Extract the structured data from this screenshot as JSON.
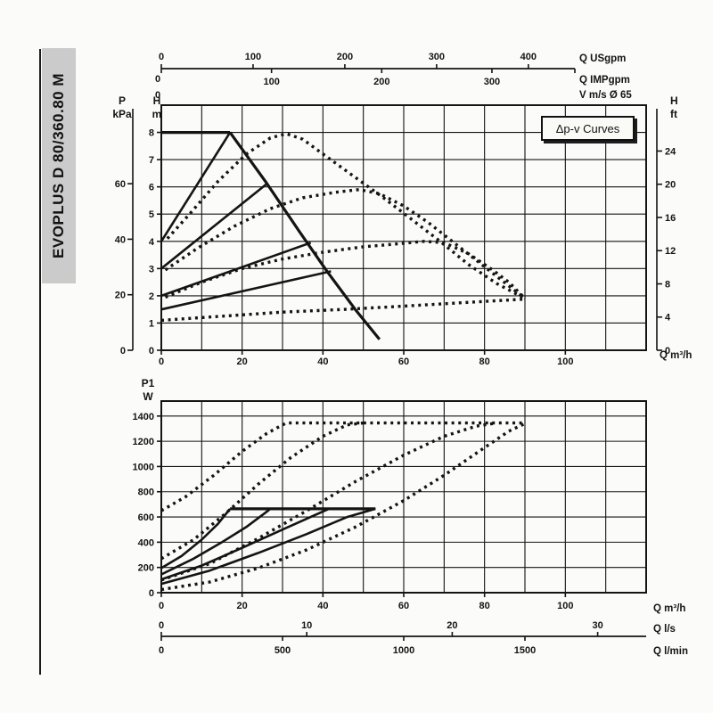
{
  "page": {
    "sidebar_model": "EVOPLUS D 80/360.80 M",
    "badge_label": "Δp-v Curves"
  },
  "chart_data": [
    {
      "type": "line",
      "title": "Δp-v Curves",
      "xlabel": "Q m³/h",
      "x_range": [
        0,
        120
      ],
      "x_grid_step": 10,
      "x_ticks_m3h": [
        0,
        20,
        40,
        60,
        80,
        100
      ],
      "y_left_m": {
        "header": [
          "H",
          "m"
        ],
        "ticks": [
          0,
          1,
          2,
          3,
          4,
          5,
          6,
          7,
          8
        ],
        "range": [
          0,
          9
        ]
      },
      "y_left_kpa": {
        "header": [
          "P",
          "kPa"
        ],
        "ticks": [
          0,
          20,
          40,
          60
        ],
        "kpa_per_m": 9.81
      },
      "y_right_ft": {
        "header": [
          "H",
          "ft"
        ],
        "ticks": [
          0,
          4,
          8,
          12,
          16,
          20,
          24
        ],
        "m_per_ft": 0.3048
      },
      "x_top_usgpm": {
        "label": "Q USgpm",
        "ticks": [
          0,
          100,
          200,
          300,
          400
        ],
        "m3h_per_unit": 0.22712
      },
      "x_top_impgpm": {
        "label": "Q IMPgpm",
        "ticks": [
          0,
          100,
          200,
          300
        ],
        "m3h_per_unit": 0.27277
      },
      "x_top_v": {
        "label": "V m/s Ø 65",
        "zero_label": "0"
      },
      "series_solid": [
        {
          "name": "max-head-limit",
          "width": 3.2,
          "points": [
            [
              0,
              8
            ],
            [
              17,
              8
            ]
          ]
        },
        {
          "name": "max-speed-curve",
          "width": 3.2,
          "points": [
            [
              17,
              8
            ],
            [
              26,
              6.15
            ],
            [
              34,
              4.4
            ],
            [
              41,
              2.9
            ],
            [
              48,
              1.5
            ],
            [
              54,
              0.4
            ]
          ]
        },
        {
          "name": "setpoint-line-8m",
          "width": 2.6,
          "points": [
            [
              0,
              4
            ],
            [
              17,
              8
            ]
          ]
        },
        {
          "name": "setpoint-line-6m",
          "width": 2.6,
          "points": [
            [
              0,
              3
            ],
            [
              26,
              6.1
            ]
          ]
        },
        {
          "name": "setpoint-line-4m",
          "width": 2.6,
          "points": [
            [
              0,
              2
            ],
            [
              37,
              3.95
            ]
          ]
        },
        {
          "name": "setpoint-line-3m",
          "width": 2.6,
          "points": [
            [
              0,
              1.5
            ],
            [
              42,
              2.9
            ]
          ]
        }
      ],
      "series_dotted": [
        {
          "name": "control-curve-1",
          "points": [
            [
              1.5,
              4.1
            ],
            [
              7,
              5.0
            ],
            [
              14,
              6.2
            ],
            [
              21,
              7.2
            ],
            [
              27,
              7.8
            ],
            [
              31,
              7.95
            ],
            [
              35,
              7.75
            ],
            [
              41,
              7.1
            ],
            [
              48,
              6.35
            ],
            [
              55,
              5.6
            ],
            [
              62,
              4.8
            ],
            [
              69,
              4.0
            ],
            [
              76,
              3.15
            ],
            [
              83,
              2.45
            ],
            [
              90,
              1.9
            ]
          ]
        },
        {
          "name": "control-curve-2",
          "points": [
            [
              1,
              2.95
            ],
            [
              9,
              3.75
            ],
            [
              18,
              4.55
            ],
            [
              27,
              5.2
            ],
            [
              35,
              5.6
            ],
            [
              43,
              5.8
            ],
            [
              49,
              5.9
            ],
            [
              54,
              5.75
            ],
            [
              60,
              5.3
            ],
            [
              66,
              4.7
            ],
            [
              72,
              4.0
            ],
            [
              78,
              3.3
            ],
            [
              84,
              2.6
            ],
            [
              90,
              1.9
            ]
          ]
        },
        {
          "name": "control-curve-3",
          "points": [
            [
              1,
              1.95
            ],
            [
              10,
              2.5
            ],
            [
              20,
              3.0
            ],
            [
              30,
              3.35
            ],
            [
              40,
              3.6
            ],
            [
              50,
              3.8
            ],
            [
              58,
              3.9
            ],
            [
              65,
              4.0
            ],
            [
              70,
              3.95
            ],
            [
              76,
              3.55
            ],
            [
              82,
              2.95
            ],
            [
              86,
              2.5
            ],
            [
              90,
              1.9
            ]
          ]
        },
        {
          "name": "control-curve-4",
          "points": [
            [
              0,
              1.1
            ],
            [
              15,
              1.25
            ],
            [
              30,
              1.4
            ],
            [
              45,
              1.5
            ],
            [
              60,
              1.62
            ],
            [
              75,
              1.75
            ],
            [
              90,
              1.88
            ]
          ]
        }
      ]
    },
    {
      "type": "line",
      "xlabel": "Q m³/h",
      "x_range": [
        0,
        120
      ],
      "x_grid_step": 10,
      "x_ticks_m3h": [
        0,
        20,
        40,
        60,
        80,
        100
      ],
      "y_left_w": {
        "header": [
          "P1",
          "W"
        ],
        "ticks": [
          0,
          200,
          400,
          600,
          800,
          1000,
          1200,
          1400
        ],
        "range": [
          0,
          1520
        ]
      },
      "x_bottom_ls": {
        "label": "Q l/s",
        "ticks": [
          0,
          10,
          20,
          30
        ],
        "m3h_per_unit": 3.6
      },
      "x_bottom_lmin": {
        "label": "Q l/min",
        "ticks": [
          0,
          500,
          1000,
          1500
        ],
        "m3h_per_unit": 0.06
      },
      "series_solid": [
        {
          "name": "power-limit-line",
          "width": 3.2,
          "points": [
            [
              17,
              665
            ],
            [
              53,
              665
            ]
          ]
        },
        {
          "name": "power-curve-8m",
          "width": 2.6,
          "points": [
            [
              0,
              195
            ],
            [
              5,
              290
            ],
            [
              10,
              420
            ],
            [
              14,
              545
            ],
            [
              17,
              665
            ]
          ]
        },
        {
          "name": "power-curve-6m",
          "width": 2.6,
          "points": [
            [
              0,
              145
            ],
            [
              8,
              270
            ],
            [
              15,
              400
            ],
            [
              21,
              520
            ],
            [
              26,
              640
            ],
            [
              27,
              665
            ]
          ]
        },
        {
          "name": "power-curve-4m",
          "width": 2.6,
          "points": [
            [
              0,
              105
            ],
            [
              10,
              215
            ],
            [
              20,
              355
            ],
            [
              30,
              500
            ],
            [
              38,
              615
            ],
            [
              41.5,
              665
            ]
          ]
        },
        {
          "name": "power-curve-3m",
          "width": 2.6,
          "points": [
            [
              0,
              70
            ],
            [
              12,
              175
            ],
            [
              24,
              315
            ],
            [
              36,
              465
            ],
            [
              46,
              600
            ],
            [
              53,
              665
            ]
          ]
        }
      ],
      "series_dotted": [
        {
          "name": "power-control-1",
          "points": [
            [
              0,
              650
            ],
            [
              6,
              760
            ],
            [
              13,
              930
            ],
            [
              20,
              1120
            ],
            [
              26,
              1260
            ],
            [
              30,
              1330
            ],
            [
              31,
              1345
            ],
            [
              90,
              1345
            ]
          ]
        },
        {
          "name": "power-control-2",
          "points": [
            [
              0,
              270
            ],
            [
              8,
              420
            ],
            [
              16,
              630
            ],
            [
              24,
              860
            ],
            [
              32,
              1070
            ],
            [
              40,
              1240
            ],
            [
              46,
              1330
            ],
            [
              50,
              1345
            ]
          ]
        },
        {
          "name": "power-control-3",
          "points": [
            [
              0,
              100
            ],
            [
              12,
              230
            ],
            [
              24,
              430
            ],
            [
              36,
              650
            ],
            [
              48,
              880
            ],
            [
              60,
              1090
            ],
            [
              70,
              1240
            ],
            [
              78,
              1320
            ],
            [
              83,
              1345
            ]
          ]
        },
        {
          "name": "power-control-4",
          "points": [
            [
              0,
              25
            ],
            [
              12,
              85
            ],
            [
              24,
              195
            ],
            [
              36,
              340
            ],
            [
              48,
              520
            ],
            [
              60,
              730
            ],
            [
              70,
              930
            ],
            [
              80,
              1150
            ],
            [
              86,
              1280
            ],
            [
              90,
              1340
            ]
          ]
        }
      ]
    }
  ],
  "colors": {
    "ink": "#141414",
    "grid": "#2e2e2e",
    "paper": "#fbfbf9",
    "sidebar": "#cbcbcb"
  }
}
